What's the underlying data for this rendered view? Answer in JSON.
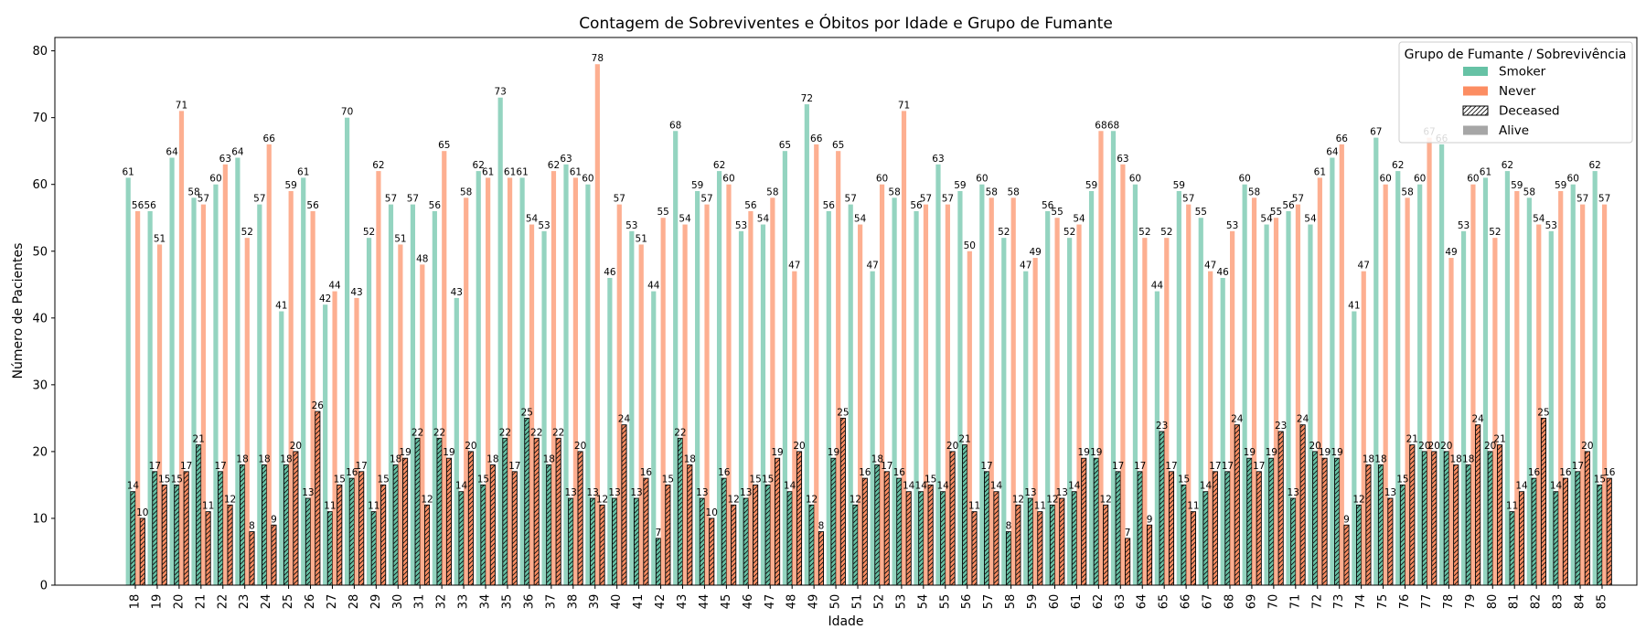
{
  "chart_data": {
    "type": "bar",
    "title": "Contagem de Sobreviventes e Óbitos por Idade e Grupo de Fumante",
    "xlabel": "Idade",
    "ylabel": "Número de Pacientes",
    "ylim": [
      0,
      82
    ],
    "yticks": [
      0,
      10,
      20,
      30,
      40,
      50,
      60,
      70,
      80
    ],
    "grid": false,
    "legend_position": "top-right",
    "colors": {
      "smoker": "#66c2a5",
      "never": "#fc8d62",
      "neutral": "#a6a6a6"
    },
    "categories": [
      "18",
      "19",
      "20",
      "21",
      "22",
      "23",
      "24",
      "25",
      "26",
      "27",
      "28",
      "29",
      "30",
      "31",
      "32",
      "33",
      "34",
      "35",
      "36",
      "37",
      "38",
      "39",
      "40",
      "41",
      "42",
      "43",
      "44",
      "45",
      "46",
      "47",
      "48",
      "49",
      "50",
      "51",
      "52",
      "53",
      "54",
      "55",
      "56",
      "57",
      "58",
      "59",
      "60",
      "61",
      "62",
      "63",
      "64",
      "65",
      "66",
      "67",
      "68",
      "69",
      "70",
      "71",
      "72",
      "73",
      "74",
      "75",
      "76",
      "77",
      "78",
      "79",
      "80",
      "81",
      "82",
      "83",
      "84",
      "85"
    ],
    "series": [
      {
        "group": "Smoker",
        "status": "Alive",
        "values": [
          61,
          56,
          64,
          58,
          60,
          64,
          57,
          41,
          61,
          42,
          70,
          52,
          57,
          57,
          56,
          43,
          62,
          73,
          61,
          53,
          63,
          60,
          46,
          53,
          44,
          68,
          59,
          62,
          53,
          54,
          65,
          72,
          56,
          57,
          47,
          58,
          56,
          63,
          59,
          60,
          52,
          47,
          56,
          52,
          59,
          68,
          60,
          44,
          59,
          55,
          46,
          60,
          54,
          56,
          54,
          64,
          41,
          67,
          62,
          60,
          66,
          53,
          61,
          62,
          58,
          53,
          60,
          62
        ]
      },
      {
        "group": "Smoker",
        "status": "Deceased",
        "values": [
          14,
          17,
          15,
          21,
          17,
          18,
          18,
          18,
          13,
          11,
          16,
          11,
          18,
          22,
          22,
          14,
          15,
          22,
          25,
          18,
          13,
          13,
          13,
          13,
          7,
          22,
          13,
          16,
          13,
          15,
          14,
          12,
          19,
          12,
          18,
          16,
          14,
          14,
          21,
          17,
          8,
          13,
          12,
          14,
          19,
          17,
          17,
          23,
          15,
          14,
          17,
          19,
          19,
          13,
          20,
          19,
          12,
          18,
          15,
          20,
          20,
          18,
          20,
          11,
          16,
          14,
          17,
          15
        ]
      },
      {
        "group": "Never",
        "status": "Alive",
        "values": [
          56,
          51,
          71,
          57,
          63,
          52,
          66,
          59,
          56,
          44,
          43,
          62,
          51,
          48,
          65,
          58,
          61,
          61,
          54,
          62,
          61,
          78,
          57,
          51,
          55,
          54,
          57,
          60,
          56,
          58,
          47,
          66,
          65,
          54,
          60,
          71,
          57,
          57,
          50,
          58,
          58,
          49,
          55,
          54,
          68,
          63,
          52,
          52,
          57,
          47,
          53,
          58,
          55,
          57,
          61,
          66,
          47,
          60,
          58,
          67,
          49,
          60,
          52,
          59,
          54,
          59,
          57,
          57
        ]
      },
      {
        "group": "Never",
        "status": "Deceased",
        "values": [
          10,
          15,
          17,
          11,
          12,
          8,
          9,
          20,
          26,
          15,
          17,
          15,
          19,
          12,
          19,
          20,
          18,
          17,
          22,
          22,
          20,
          12,
          24,
          16,
          15,
          18,
          10,
          12,
          15,
          19,
          20,
          8,
          25,
          16,
          17,
          14,
          15,
          20,
          11,
          14,
          12,
          11,
          13,
          19,
          12,
          7,
          9,
          17,
          11,
          17,
          24,
          17,
          23,
          24,
          19,
          9,
          18,
          13,
          21,
          20,
          18,
          24,
          21,
          14,
          25,
          16,
          20,
          16
        ]
      }
    ],
    "legend": {
      "title": "Grupo de Fumante / Sobrevivência",
      "entries": [
        {
          "label": "Smoker",
          "style": "smoker"
        },
        {
          "label": "Never",
          "style": "never"
        },
        {
          "label": "Deceased",
          "style": "hatch"
        },
        {
          "label": "Alive",
          "style": "neutral"
        }
      ]
    }
  }
}
